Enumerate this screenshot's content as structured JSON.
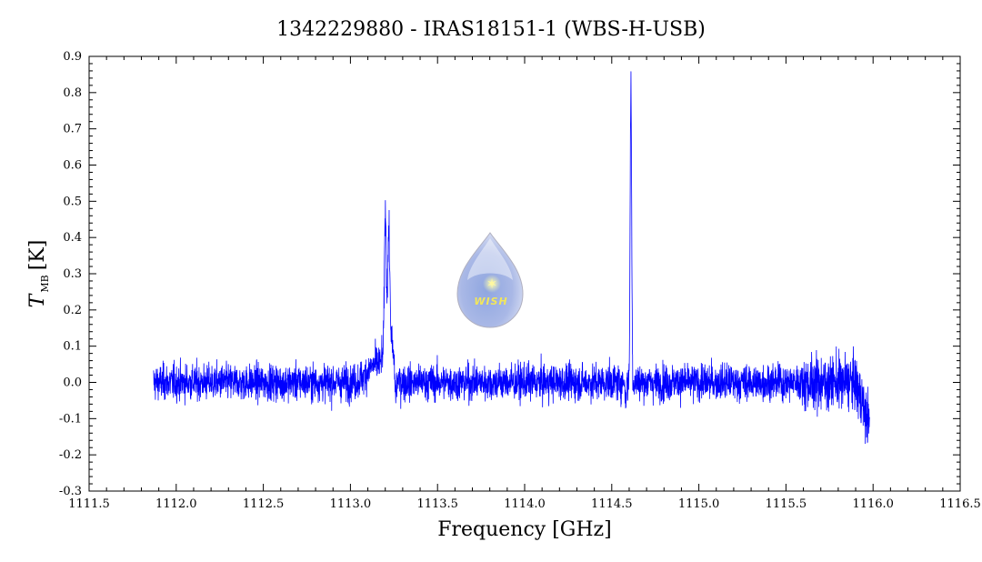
{
  "chart_data": {
    "type": "line",
    "title": "1342229880 - IRAS18151-1 (WBS-H-USB)",
    "xlabel": "Frequency [GHz]",
    "ylabel_main": "T",
    "ylabel_sub": "MB",
    "ylabel_unit": "[K]",
    "xlim": [
      1111.5,
      1116.5
    ],
    "ylim": [
      -0.3,
      0.9
    ],
    "x_ticks": [
      "1111.5",
      "1112.0",
      "1112.5",
      "1113.0",
      "1113.5",
      "1114.0",
      "1114.5",
      "1115.0",
      "1115.5",
      "1116.0",
      "1116.5"
    ],
    "y_ticks": [
      "-0.3",
      "-0.2",
      "-0.1",
      "0.0",
      "0.1",
      "0.2",
      "0.3",
      "0.4",
      "0.5",
      "0.6",
      "0.7",
      "0.8",
      "0.9"
    ],
    "grid": false,
    "series": [
      {
        "color": "#0000ff",
        "x_start": 1111.87,
        "x_end": 1115.98,
        "baseline": 0.0,
        "noise_rms": 0.035,
        "features": [
          {
            "x": 1113.2,
            "peak": 0.52
          },
          {
            "x": 1113.22,
            "peak": 0.39
          },
          {
            "x": 1113.26,
            "peak": -0.03
          },
          {
            "x": 1114.61,
            "peak": 0.86
          },
          {
            "x": 1114.58,
            "peak": -0.1
          },
          {
            "x": 1115.97,
            "peak": -0.23
          }
        ]
      }
    ]
  },
  "logo": {
    "text": "WISH"
  }
}
